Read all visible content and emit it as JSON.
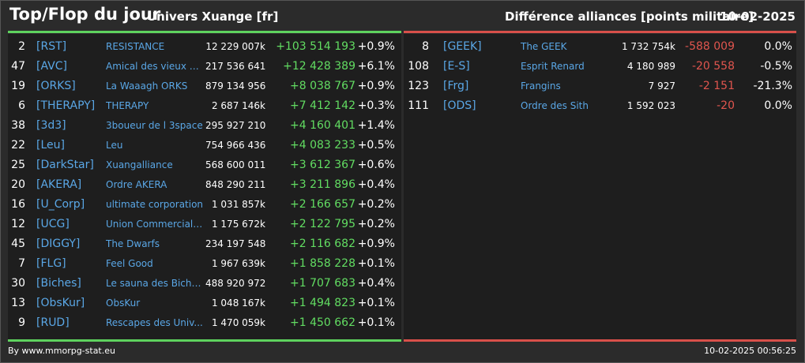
{
  "header": {
    "title": "Top/Flop du jour",
    "universe": "Univers Xuange [fr]",
    "subtitle": "Différence alliances [points militaire]",
    "date": "10-02-2025"
  },
  "colors": {
    "positive": "#62dd62",
    "negative": "#e0554e",
    "tag": "#5aa7e6"
  },
  "top": [
    {
      "rank": "2",
      "tag": "[RST]",
      "name": "RESISTANCE",
      "points": "12 229 007k",
      "diff": "+103 514 193",
      "pct": "+0.9%"
    },
    {
      "rank": "47",
      "tag": "[AVC]",
      "name": "Amical des vieux co...",
      "points": "217 536 641",
      "diff": "+12 428 389",
      "pct": "+6.1%"
    },
    {
      "rank": "19",
      "tag": "[ORKS]",
      "name": "La Waaagh ORKS",
      "points": "879 134 956",
      "diff": "+8 038 767",
      "pct": "+0.9%"
    },
    {
      "rank": "6",
      "tag": "[THERAPY]",
      "name": "THERAPY",
      "points": "2 687 146k",
      "diff": "+7 412 142",
      "pct": "+0.3%"
    },
    {
      "rank": "38",
      "tag": "[3d3]",
      "name": "3boueur de l 3space",
      "points": "295 927 210",
      "diff": "+4 160 401",
      "pct": "+1.4%"
    },
    {
      "rank": "22",
      "tag": "[Leu]",
      "name": "Leu",
      "points": "754 966 436",
      "diff": "+4 083 233",
      "pct": "+0.5%"
    },
    {
      "rank": "25",
      "tag": "[DarkStar]",
      "name": "Xuangalliance",
      "points": "568 600 011",
      "diff": "+3 612 367",
      "pct": "+0.6%"
    },
    {
      "rank": "20",
      "tag": "[AKERA]",
      "name": "Ordre AKERA",
      "points": "848 290 211",
      "diff": "+3 211 896",
      "pct": "+0.4%"
    },
    {
      "rank": "16",
      "tag": "[U_Corp]",
      "name": "ultimate corporation",
      "points": "1 031 857k",
      "diff": "+2 166 657",
      "pct": "+0.2%"
    },
    {
      "rank": "12",
      "tag": "[UCG]",
      "name": "Union Commerciale...",
      "points": "1 175 672k",
      "diff": "+2 122 795",
      "pct": "+0.2%"
    },
    {
      "rank": "45",
      "tag": "[DIGGY]",
      "name": "The Dwarfs",
      "points": "234 197 548",
      "diff": "+2 116 682",
      "pct": "+0.9%"
    },
    {
      "rank": "7",
      "tag": "[FLG]",
      "name": "Feel Good",
      "points": "1 967 639k",
      "diff": "+1 858 228",
      "pct": "+0.1%"
    },
    {
      "rank": "30",
      "tag": "[Biches]",
      "name": "Le sauna des Biche...",
      "points": "488 920 972",
      "diff": "+1 707 683",
      "pct": "+0.4%"
    },
    {
      "rank": "13",
      "tag": "[ObsKur]",
      "name": "ObsKur",
      "points": "1 048 167k",
      "diff": "+1 494 823",
      "pct": "+0.1%"
    },
    {
      "rank": "9",
      "tag": "[RUD]",
      "name": "Rescapes des Univ...",
      "points": "1 470 059k",
      "diff": "+1 450 662",
      "pct": "+0.1%"
    }
  ],
  "flop": [
    {
      "rank": "8",
      "tag": "[GEEK]",
      "name": "The GEEK",
      "points": "1 732 754k",
      "diff": "-588 009",
      "pct": "0.0%"
    },
    {
      "rank": "108",
      "tag": "[E-S]",
      "name": "Esprit Renard",
      "points": "4 180 989",
      "diff": "-20 558",
      "pct": "-0.5%"
    },
    {
      "rank": "123",
      "tag": "[Frg]",
      "name": "Frangins",
      "points": "7 927",
      "diff": "-2 151",
      "pct": "-21.3%"
    },
    {
      "rank": "111",
      "tag": "[ODS]",
      "name": "Ordre des Sith",
      "points": "1 592 023",
      "diff": "-20",
      "pct": "0.0%"
    }
  ],
  "footer": {
    "credit": "By www.mmorpg-stat.eu",
    "timestamp": "10-02-2025 00:56:25"
  }
}
